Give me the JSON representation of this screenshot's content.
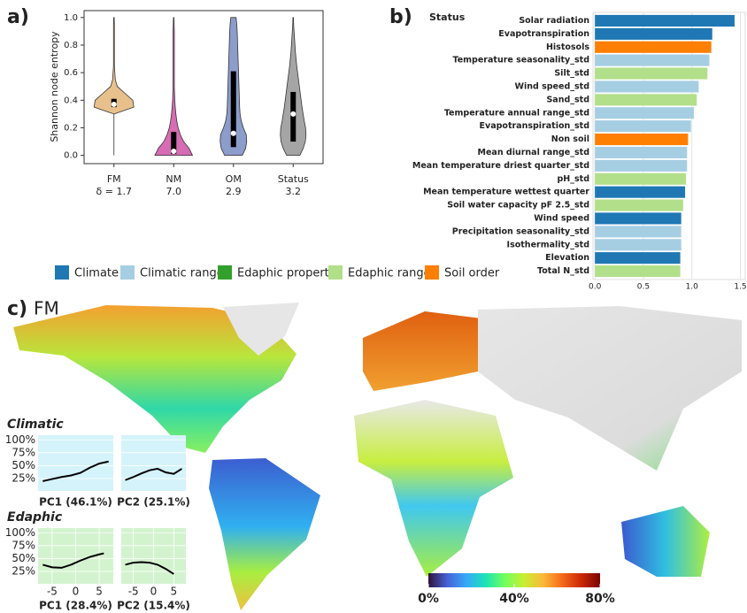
{
  "chart_data": [
    {
      "type": "violin",
      "panel": "a)",
      "ylabel": "Shannon node entropy",
      "ylim": [
        -0.06,
        1.05
      ],
      "yticks": [
        {
          "value": 0,
          "label": "0.0"
        },
        {
          "value": 0.2,
          "label": "0.2"
        },
        {
          "value": 0.4,
          "label": "0.4"
        },
        {
          "value": 0.6,
          "label": "0.6"
        },
        {
          "value": 0.8,
          "label": "0.8"
        },
        {
          "value": 1,
          "label": "1.0"
        }
      ],
      "density_levels": [
        0,
        0.05,
        0.1,
        0.15,
        0.2,
        0.25,
        0.3,
        0.35,
        0.4,
        0.45,
        0.5,
        0.55,
        0.6,
        0.65,
        0.7,
        0.75,
        0.8,
        0.85,
        0.9,
        0.95,
        1
      ],
      "series": [
        {
          "name": "FM",
          "note": "δ = 1.7",
          "color": "#e8c08c",
          "median": 0.37,
          "q1": 0.35,
          "q3": 0.41,
          "density": [
            0,
            0,
            0,
            0,
            0,
            0,
            0,
            0.9,
            0.85,
            0.5,
            0.15,
            0.06,
            0.04,
            0.02,
            0.02,
            0.02,
            0.02,
            0.02,
            0.02,
            0.02,
            0.01
          ]
        },
        {
          "name": "NM",
          "note": "7.0",
          "color": "#d66cb3",
          "median": 0.03,
          "q1": 0.01,
          "q3": 0.17,
          "density": [
            0.85,
            0.7,
            0.45,
            0.3,
            0.2,
            0.14,
            0.1,
            0.07,
            0.05,
            0.04,
            0.03,
            0.03,
            0.03,
            0.03,
            0.03,
            0.03,
            0.03,
            0.03,
            0.03,
            0.02,
            0.01
          ]
        },
        {
          "name": "OM",
          "note": "2.9",
          "color": "#8c9dcb",
          "median": 0.16,
          "q1": 0.06,
          "q3": 0.61,
          "density": [
            0.4,
            0.55,
            0.6,
            0.58,
            0.45,
            0.35,
            0.3,
            0.28,
            0.27,
            0.26,
            0.25,
            0.24,
            0.23,
            0.22,
            0.21,
            0.2,
            0.19,
            0.18,
            0.17,
            0.15,
            0.12
          ]
        },
        {
          "name": "Status",
          "note": "3.2",
          "color": "#a5a5a5",
          "median": 0.3,
          "q1": 0.1,
          "q3": 0.46,
          "density": [
            0.3,
            0.45,
            0.55,
            0.58,
            0.56,
            0.5,
            0.45,
            0.4,
            0.36,
            0.32,
            0.28,
            0.24,
            0.2,
            0.16,
            0.13,
            0.1,
            0.08,
            0.06,
            0.04,
            0.02,
            0.01
          ]
        }
      ]
    },
    {
      "type": "hbar",
      "panel": "b)",
      "title": "Status",
      "categories": [
        "Solar radiation",
        "Evapotranspiration",
        "Histosols",
        "Temperature seasonality_std",
        "Silt_std",
        "Wind speed_std",
        "Sand_std",
        "Temperature annual range_std",
        "Evapotranspiration_std",
        "Non soil",
        "Mean diurnal range_std",
        "Mean temperature driest quarter_std",
        "pH_std",
        "Mean temperature wettest quarter",
        "Soil water capacity pF 2.5_std",
        "Wind speed",
        "Precipitation seasonality_std",
        "Isothermality_std",
        "Elevation",
        "Total N_std"
      ],
      "values": [
        1.44,
        1.21,
        1.2,
        1.18,
        1.16,
        1.07,
        1.05,
        1.02,
        0.99,
        0.96,
        0.95,
        0.95,
        0.94,
        0.93,
        0.91,
        0.89,
        0.89,
        0.89,
        0.88,
        0.88
      ],
      "colors": [
        "#1f78b4",
        "#1f78b4",
        "#ff7f00",
        "#a6cee3",
        "#b2df8a",
        "#a6cee3",
        "#b2df8a",
        "#a6cee3",
        "#a6cee3",
        "#ff7f00",
        "#a6cee3",
        "#a6cee3",
        "#b2df8a",
        "#1f78b4",
        "#b2df8a",
        "#1f78b4",
        "#a6cee3",
        "#a6cee3",
        "#1f78b4",
        "#b2df8a"
      ],
      "xlim": [
        -0.02,
        1.55
      ],
      "xticks": [
        {
          "value": 0,
          "label": "0.0"
        },
        {
          "value": 0.5,
          "label": "0.5"
        },
        {
          "value": 1,
          "label": "1.0"
        },
        {
          "value": 1.5,
          "label": "1.5"
        }
      ],
      "grid": true,
      "legend": [
        {
          "name": "Climate",
          "color": "#1f78b4"
        },
        {
          "name": "Climatic range",
          "color": "#a6cee3"
        },
        {
          "name": "Edaphic property",
          "color": "#33a02c"
        },
        {
          "name": "Edaphic range",
          "color": "#b2df8a"
        },
        {
          "name": "Soil order",
          "color": "#ff7f00"
        }
      ]
    },
    {
      "type": "map",
      "panel": "c)",
      "title": "FM",
      "colorbar": {
        "colors": [
          "#30123b",
          "#4662d7",
          "#36aaf9",
          "#1ae4b6",
          "#72fe5e",
          "#c8ef34",
          "#faba39",
          "#f66b19",
          "#ca2a04",
          "#7a0403"
        ],
        "lim": [
          0,
          80
        ],
        "ticks": [
          {
            "value": 0,
            "label": "0%"
          },
          {
            "value": 40,
            "label": "40%"
          },
          {
            "value": 80,
            "label": "80%"
          }
        ]
      },
      "insets": [
        {
          "title": "Climatic",
          "background": "#d4f3fb",
          "xlim": [
            -8,
            8
          ],
          "ylim": [
            1,
            109
          ],
          "yticks": [
            {
              "value": 25,
              "label": "25%"
            },
            {
              "value": 50,
              "label": "50%"
            },
            {
              "value": 75,
              "label": "75%"
            },
            {
              "value": 100,
              "label": "100%"
            }
          ],
          "panels": [
            {
              "xlabel": "PC1 (46.1%)",
              "x": [
                -7,
                -5,
                -3,
                -1,
                1,
                3,
                5,
                7
              ],
              "values": [
                20,
                24,
                28,
                31,
                36,
                46,
                54,
                58
              ]
            },
            {
              "xlabel": "PC2 (25.1%)",
              "x": [
                -7,
                -5,
                -3,
                -1,
                1,
                3,
                5,
                7
              ],
              "values": [
                22,
                28,
                35,
                41,
                44,
                37,
                34,
                44
              ]
            }
          ]
        },
        {
          "title": "Edaphic",
          "background": "#d3f3cf",
          "xlim": [
            -8,
            8
          ],
          "ylim": [
            1,
            109
          ],
          "yticks": [
            {
              "value": 25,
              "label": "25%"
            },
            {
              "value": 50,
              "label": "50%"
            },
            {
              "value": 75,
              "label": "75%"
            },
            {
              "value": 100,
              "label": "100%"
            }
          ],
          "xticks": [
            -5,
            0,
            5
          ],
          "panels": [
            {
              "xlabel": "PC1 (28.4%)",
              "x": [
                -7,
                -5,
                -3,
                -1,
                1,
                3,
                5,
                6
              ],
              "values": [
                38,
                33,
                32,
                38,
                46,
                53,
                58,
                60
              ]
            },
            {
              "xlabel": "PC2 (15.4%)",
              "x": [
                -7,
                -5,
                -3,
                -1,
                1,
                3,
                5
              ],
              "values": [
                38,
                42,
                43,
                42,
                38,
                30,
                20
              ]
            }
          ]
        }
      ]
    }
  ]
}
